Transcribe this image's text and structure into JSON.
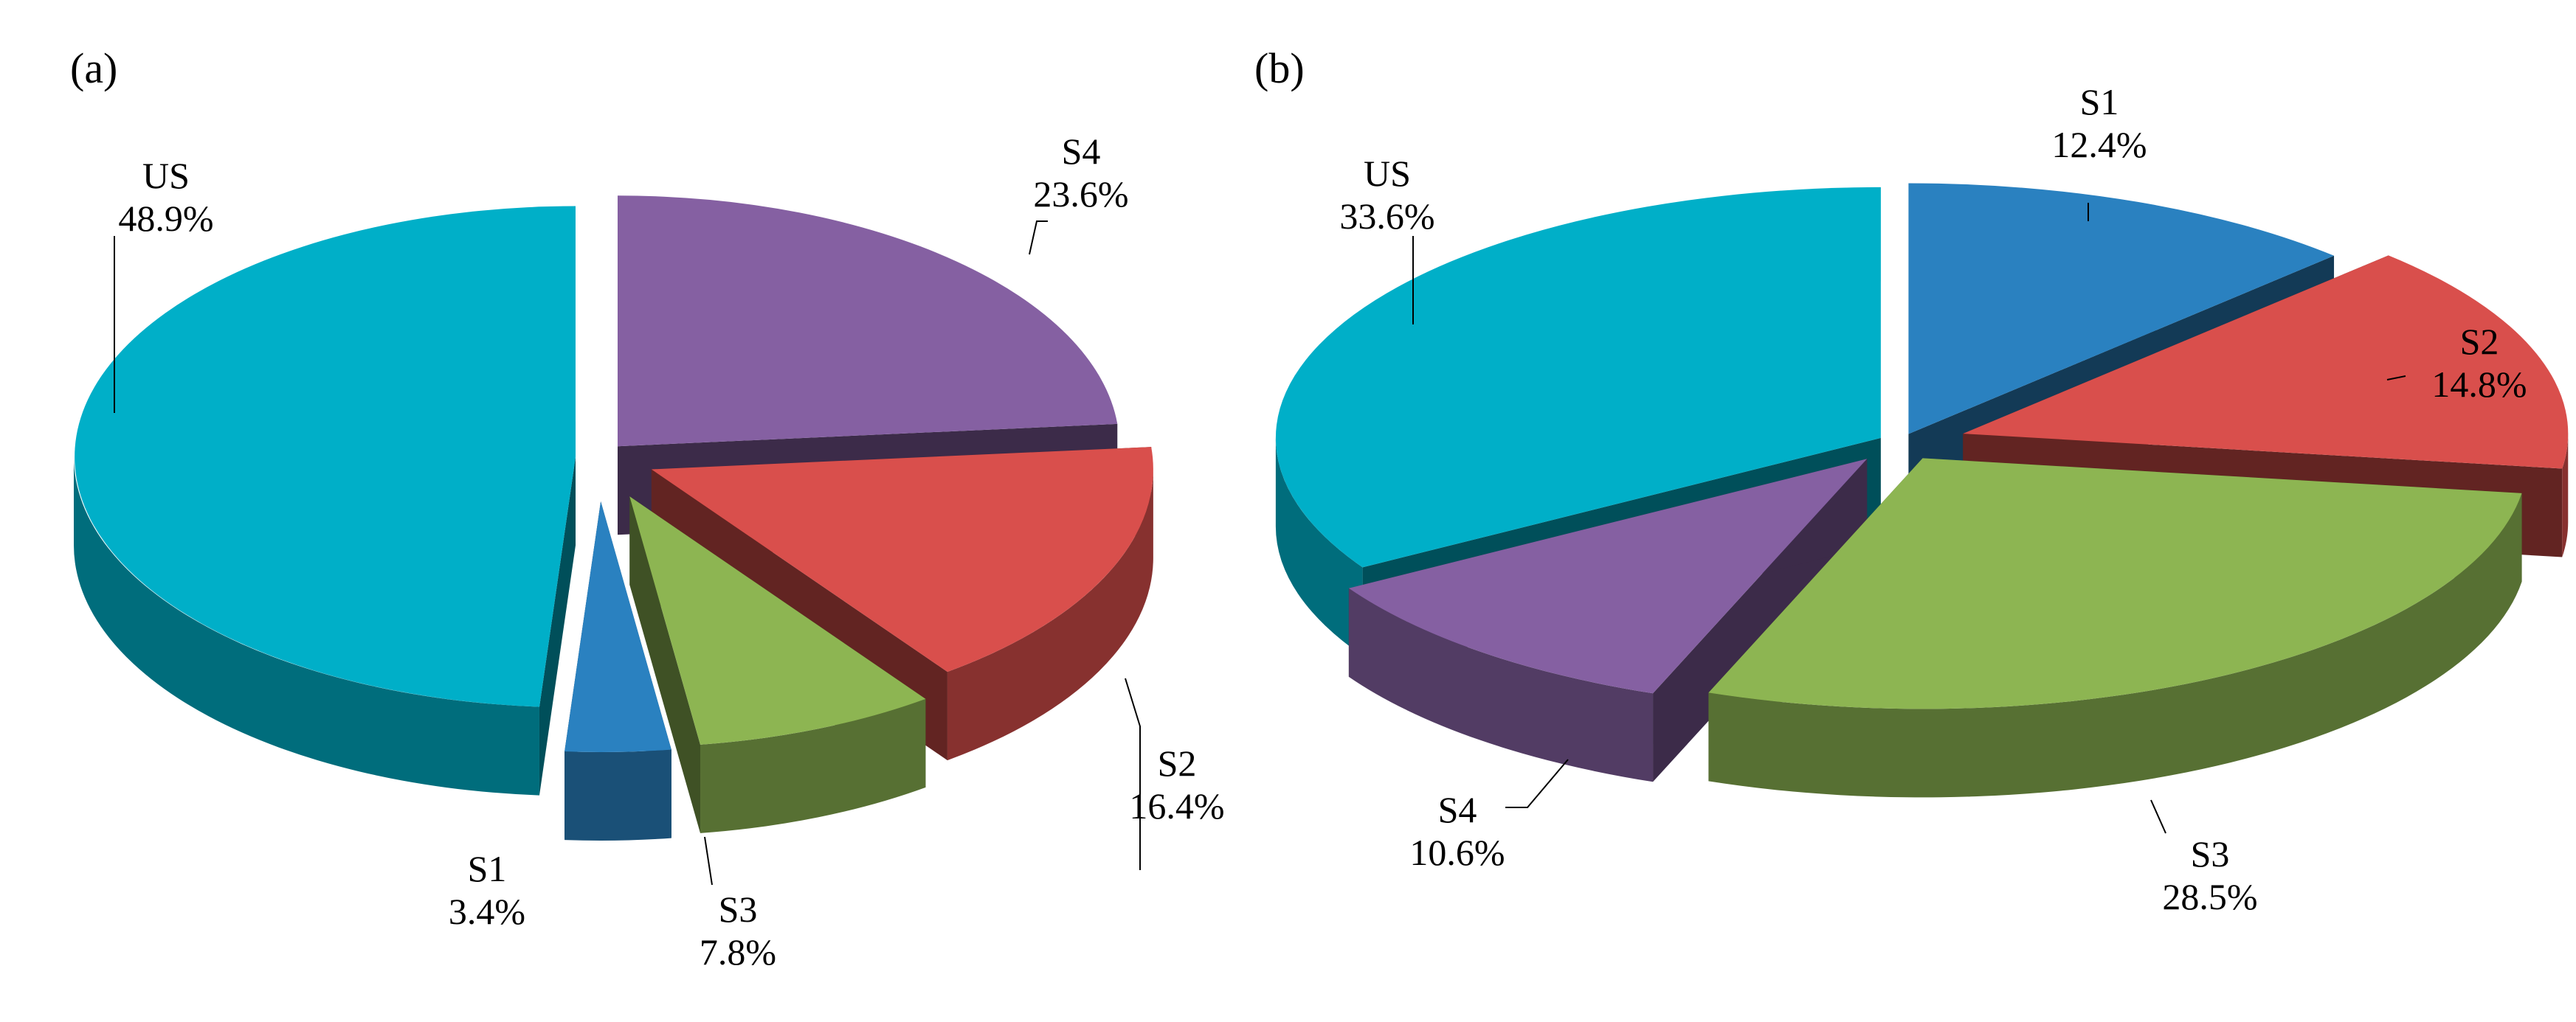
{
  "chart_data": [
    {
      "type": "pie",
      "panel_label": "(a)",
      "slices": [
        {
          "label": "S4",
          "pct_text": "23.6%",
          "value": 23.6,
          "color": "#8560A2"
        },
        {
          "label": "S2",
          "pct_text": "16.4%",
          "value": 16.4,
          "color": "#D94F4C"
        },
        {
          "label": "S3",
          "pct_text": "7.8%",
          "value": 7.8,
          "color": "#8DB552"
        },
        {
          "label": "S1",
          "pct_text": "3.4%",
          "value": 3.4,
          "color": "#2A81C0"
        },
        {
          "label": "US",
          "pct_text": "48.9%",
          "value": 48.9,
          "color": "#00AFC8"
        }
      ]
    },
    {
      "type": "pie",
      "panel_label": "(b)",
      "slices": [
        {
          "label": "S1",
          "pct_text": "12.4%",
          "value": 12.4,
          "color": "#2A81C0"
        },
        {
          "label": "S2",
          "pct_text": "14.8%",
          "value": 14.8,
          "color": "#D94F4C"
        },
        {
          "label": "S3",
          "pct_text": "28.5%",
          "value": 28.5,
          "color": "#8DB552"
        },
        {
          "label": "S4",
          "pct_text": "10.6%",
          "value": 10.6,
          "color": "#8560A2"
        },
        {
          "label": "US",
          "pct_text": "33.6%",
          "value": 33.6,
          "color": "#00AFC8"
        }
      ]
    }
  ]
}
